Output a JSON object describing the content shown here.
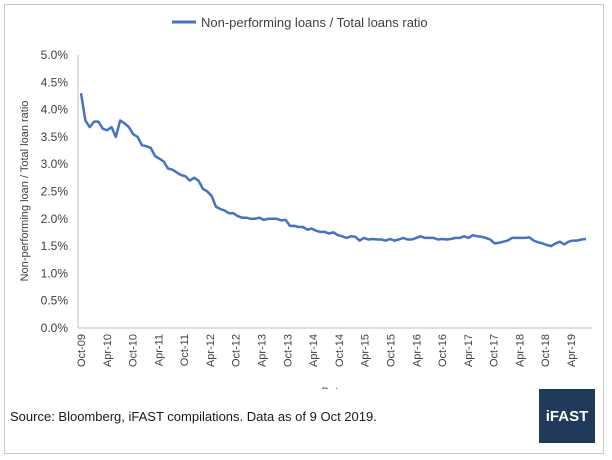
{
  "chart_data": {
    "type": "line",
    "legend": "Non-performing loans / Total loans ratio",
    "legend_position": "top",
    "xlabel": "Date",
    "ylabel": "Non-performing loan / Total loan ratio",
    "ylim": [
      0,
      5.0
    ],
    "y_ticks": [
      "0.0%",
      "0.5%",
      "1.0%",
      "1.5%",
      "2.0%",
      "2.5%",
      "3.0%",
      "3.5%",
      "4.0%",
      "4.5%",
      "5.0%"
    ],
    "x_ticks": [
      "Oct-09",
      "Apr-10",
      "Oct-10",
      "Apr-11",
      "Oct-11",
      "Apr-12",
      "Oct-12",
      "Apr-13",
      "Oct-13",
      "Apr-14",
      "Oct-14",
      "Apr-15",
      "Oct-15",
      "Apr-16",
      "Oct-16",
      "Apr-17",
      "Oct-17",
      "Apr-18",
      "Oct-18",
      "Apr-19"
    ],
    "grid": false,
    "color": "#4472c4",
    "series": [
      {
        "name": "Non-performing loans / Total loans ratio",
        "values": [
          4.3,
          3.8,
          3.68,
          3.78,
          3.78,
          3.65,
          3.62,
          3.68,
          3.5,
          3.8,
          3.75,
          3.68,
          3.55,
          3.5,
          3.35,
          3.33,
          3.3,
          3.15,
          3.1,
          3.05,
          2.92,
          2.9,
          2.85,
          2.8,
          2.78,
          2.7,
          2.75,
          2.7,
          2.55,
          2.5,
          2.42,
          2.22,
          2.18,
          2.15,
          2.1,
          2.1,
          2.05,
          2.02,
          2.02,
          2.0,
          2.0,
          2.02,
          1.98,
          2.0,
          2.0,
          2.0,
          1.97,
          1.98,
          1.87,
          1.87,
          1.85,
          1.85,
          1.8,
          1.82,
          1.78,
          1.76,
          1.76,
          1.73,
          1.75,
          1.7,
          1.68,
          1.65,
          1.68,
          1.67,
          1.6,
          1.65,
          1.62,
          1.63,
          1.62,
          1.62,
          1.6,
          1.63,
          1.6,
          1.62,
          1.65,
          1.62,
          1.62,
          1.65,
          1.68,
          1.65,
          1.65,
          1.65,
          1.62,
          1.63,
          1.62,
          1.63,
          1.65,
          1.65,
          1.68,
          1.65,
          1.7,
          1.68,
          1.67,
          1.65,
          1.62,
          1.55,
          1.56,
          1.58,
          1.6,
          1.65,
          1.65,
          1.65,
          1.65,
          1.66,
          1.6,
          1.57,
          1.55,
          1.52,
          1.5,
          1.55,
          1.58,
          1.53,
          1.58,
          1.6,
          1.6,
          1.62,
          1.63
        ]
      }
    ]
  },
  "footer": {
    "source": "Source: Bloomberg, iFAST compilations. Data as of 9 Oct 2019.",
    "logo": "iFAST"
  }
}
